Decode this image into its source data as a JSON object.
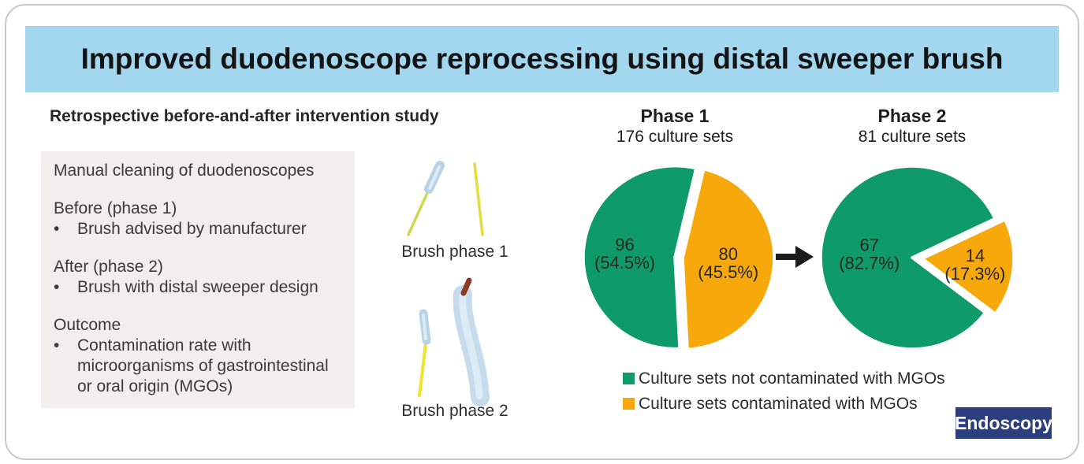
{
  "header": {
    "title": "Improved duodenoscope reprocessing using distal sweeper brush",
    "bg": "#a3d7f0"
  },
  "study": {
    "heading": "Retrospective before-and-after intervention study",
    "box": {
      "bg": "#f0efec",
      "intro": "Manual cleaning of duodenoscopes",
      "sections": [
        {
          "title": "Before (phase 1)",
          "bullets": [
            "Brush advised by manufacturer"
          ]
        },
        {
          "title": "After (phase 2)",
          "bullets": [
            "Brush with distal sweeper design"
          ]
        },
        {
          "title": "Outcome",
          "bullets": [
            "Contamination rate with microorganisms of gastrointestinal or oral origin (MGOs)"
          ]
        }
      ]
    }
  },
  "brushes": [
    {
      "label": "Brush phase 1"
    },
    {
      "label": "Brush phase 2"
    }
  ],
  "chart_data": [
    {
      "type": "pie",
      "title": "Phase 1",
      "subtitle": "176 culture sets",
      "total": 176,
      "start_deg": -87,
      "label_color": "#262626",
      "slices": [
        {
          "name": "not-contaminated",
          "value": 96,
          "percent_label": "(54.5%)",
          "color": "#0f9b69",
          "explode": 4,
          "label_r": 0.55
        },
        {
          "name": "contaminated",
          "value": 80,
          "percent_label": "(45.5%)",
          "color": "#f7a80b",
          "explode": 6,
          "label_r": 0.5
        }
      ]
    },
    {
      "type": "pie",
      "title": "Phase 2",
      "subtitle": "81 culture sets",
      "total": 81,
      "start_deg": -37,
      "label_color": "#262626",
      "slices": [
        {
          "name": "not-contaminated",
          "value": 67,
          "percent_label": "(82.7%)",
          "color": "#0f9b69",
          "explode": 0,
          "label_r": 0.47
        },
        {
          "name": "contaminated",
          "value": 14,
          "percent_label": "(17.3%)",
          "color": "#f7a80b",
          "explode": 13,
          "label_r": 0.58
        }
      ]
    }
  ],
  "arrow": {
    "icon": "right-arrow",
    "color": "#1c1c1c"
  },
  "legend": [
    {
      "label": "Culture sets not contaminated with MGOs",
      "color": "#0f9b69"
    },
    {
      "label": "Culture sets contaminated with MGOs",
      "color": "#f7a80b"
    }
  ],
  "journal_badge": {
    "label": "Endoscopy",
    "bg": "#2b3e7e",
    "text_color": "#ffffff"
  }
}
